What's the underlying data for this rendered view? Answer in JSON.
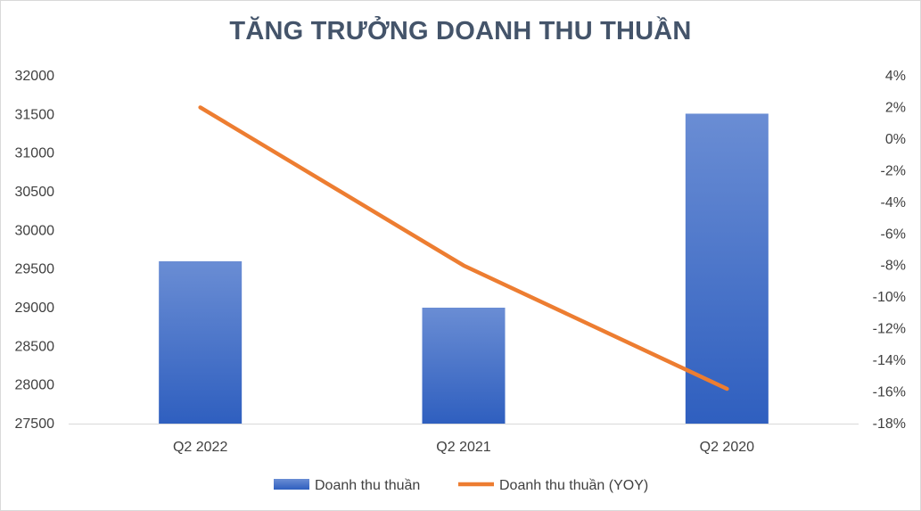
{
  "chart_data": {
    "type": "bar",
    "title": "TĂNG TRƯỞNG DOANH THU THUẦN",
    "categories": [
      "Q2 2022",
      "Q2 2021",
      "Q2 2020"
    ],
    "series": [
      {
        "name": "Doanh thu thuần",
        "type": "bar",
        "axis": "left",
        "values": [
          29600,
          29000,
          31510
        ],
        "color": "#4472c4"
      },
      {
        "name": "Doanh thu thuần (YOY)",
        "type": "line",
        "axis": "right",
        "values": [
          0.02,
          -0.08,
          -0.158
        ],
        "color": "#ed7d31"
      }
    ],
    "y_left": {
      "ylim": [
        27500,
        32000
      ],
      "ticks": [
        "32000",
        "31500",
        "31000",
        "30500",
        "30000",
        "29500",
        "29000",
        "28500",
        "28000",
        "27500"
      ]
    },
    "y_right": {
      "ylim": [
        -0.18,
        0.04
      ],
      "ticks": [
        "4%",
        "2%",
        "0%",
        "-2%",
        "-4%",
        "-6%",
        "-8%",
        "-10%",
        "-12%",
        "-14%",
        "-16%",
        "-18%"
      ]
    },
    "grid": false,
    "legend": "bottom"
  }
}
